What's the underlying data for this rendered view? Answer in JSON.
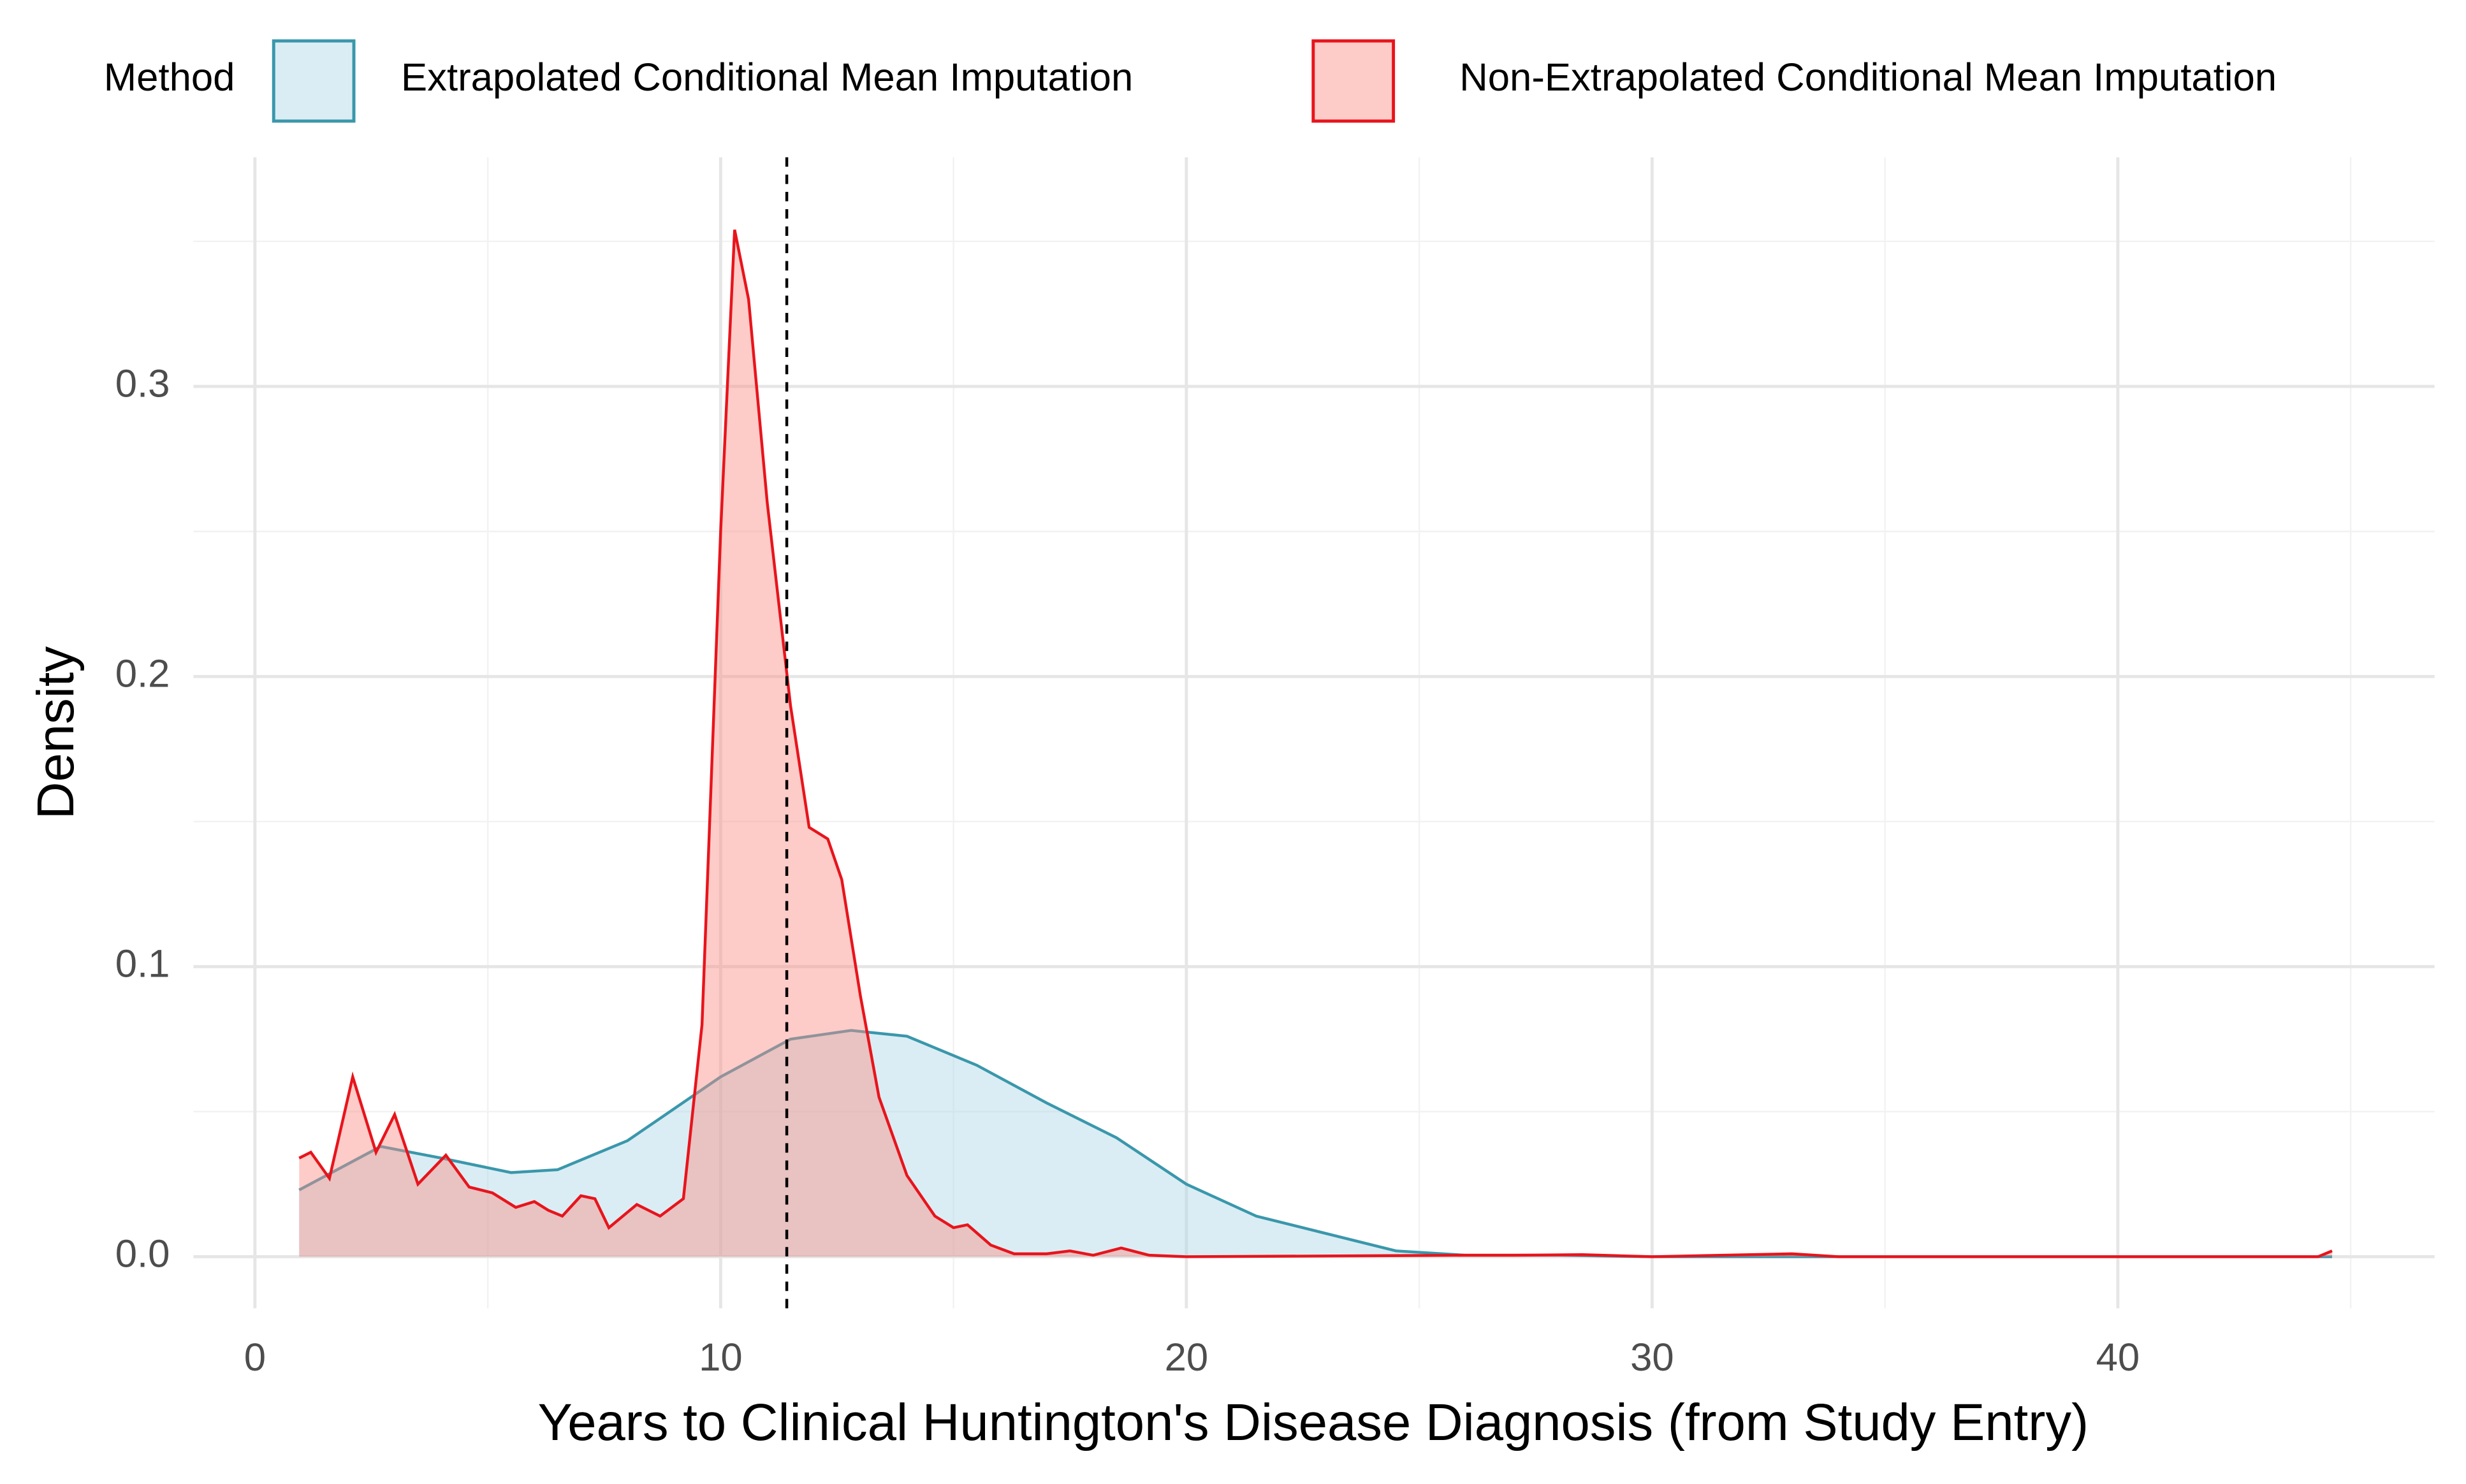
{
  "chart_data": {
    "type": "area",
    "x_label": "Years to Clinical Huntington's Disease Diagnosis (from Study Entry)",
    "y_label": "Density",
    "legend_title": "Method",
    "legend_position": "top",
    "xlim": [
      -1.32,
      46.8
    ],
    "ylim": [
      -0.0178,
      0.379
    ],
    "xticks": [
      0,
      10,
      20,
      30,
      40
    ],
    "yticks": [
      {
        "value": 0,
        "label": "0.0"
      },
      0.1,
      0.2,
      0.3
    ],
    "minor_xticks": [
      5,
      15,
      25,
      35,
      45
    ],
    "minor_yticks": [
      0.05,
      0.15,
      0.25,
      0.35
    ],
    "grid": true,
    "vline": 11.42,
    "series": [
      {
        "name": "Extrapolated Conditional Mean Imputation",
        "color": "#3a97ab",
        "fill": "#add8e6",
        "x": [
          0.95,
          2.7,
          4,
          5.5,
          6.5,
          8,
          10,
          11.5,
          12.8,
          14,
          15.5,
          17,
          18.5,
          20,
          21.5,
          23,
          24.5,
          26,
          28,
          30,
          44.6
        ],
        "values": [
          0.023,
          0.038,
          0.034,
          0.029,
          0.03,
          0.04,
          0.062,
          0.075,
          0.078,
          0.076,
          0.066,
          0.053,
          0.041,
          0.025,
          0.014,
          0.008,
          0.002,
          0.0005,
          0.0005,
          0,
          0
        ]
      },
      {
        "name": "Non-Extrapolated Conditional Mean Imputation",
        "color": "#e8141c",
        "fill": "#fa8f86",
        "x": [
          0.95,
          1.2,
          1.6,
          2.1,
          2.6,
          3.0,
          3.5,
          4.1,
          4.6,
          5.1,
          5.6,
          6.0,
          6.3,
          6.6,
          7.0,
          7.3,
          7.6,
          8.2,
          8.7,
          9.2,
          9.6,
          10.0,
          10.3,
          10.6,
          11.0,
          11.5,
          11.9,
          12.3,
          12.6,
          13.0,
          13.4,
          14.0,
          14.6,
          15.0,
          15.3,
          15.8,
          16.3,
          17,
          17.5,
          18,
          18.6,
          19.2,
          20,
          26,
          27,
          28.5,
          30,
          33,
          34,
          44.3,
          44.6
        ],
        "values": [
          0.034,
          0.036,
          0.027,
          0.062,
          0.036,
          0.049,
          0.025,
          0.035,
          0.024,
          0.022,
          0.017,
          0.019,
          0.016,
          0.014,
          0.021,
          0.02,
          0.01,
          0.018,
          0.014,
          0.02,
          0.08,
          0.25,
          0.354,
          0.33,
          0.26,
          0.19,
          0.148,
          0.144,
          0.13,
          0.09,
          0.055,
          0.028,
          0.014,
          0.01,
          0.011,
          0.004,
          0.001,
          0.001,
          0.002,
          0.0005,
          0.003,
          0.0005,
          0,
          0.0005,
          0.0005,
          0.0007,
          0,
          0.001,
          0,
          0,
          0.002
        ]
      }
    ]
  }
}
